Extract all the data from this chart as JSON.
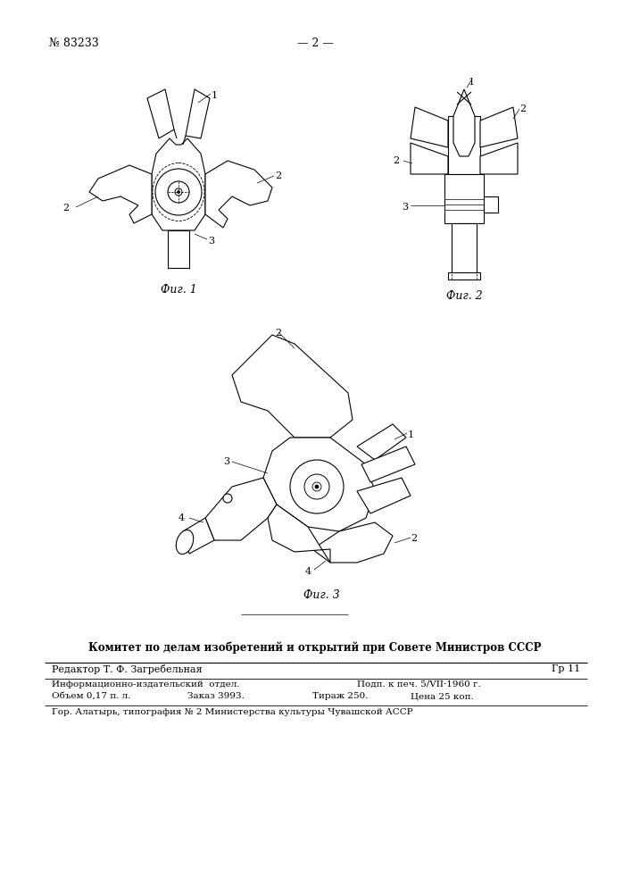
{
  "bg_color": "#ffffff",
  "page_number_text": "№ 83233",
  "page_center_text": "— 2 —",
  "fig1_caption": "Фиг. 1",
  "fig2_caption": "Фиг. 2",
  "fig3_caption": "Фиг. 3",
  "footer_bold": "Комитет по делам изобретений и открытий при Совете Министров СССР",
  "footer_row0_left": "Редактор Т. Ф. Загребельная",
  "footer_row0_right": "Гр 11",
  "footer_row1_col1": "Информационно-издательский  отдел.",
  "footer_row1_col2": "Подп. к печ. 5/VII·1960 г.",
  "footer_row2_col1": "Объем 0,17 п. л.",
  "footer_row2_col2": "Заказ 3993.",
  "footer_row2_col3": "Тираж 250.",
  "footer_row2_col4": "Цена 25 коп.",
  "footer_row3": "Гор. Алатырь, типография № 2 Министерства культуры Чувашской АССР",
  "line_color": "#000000",
  "text_color": "#000000"
}
